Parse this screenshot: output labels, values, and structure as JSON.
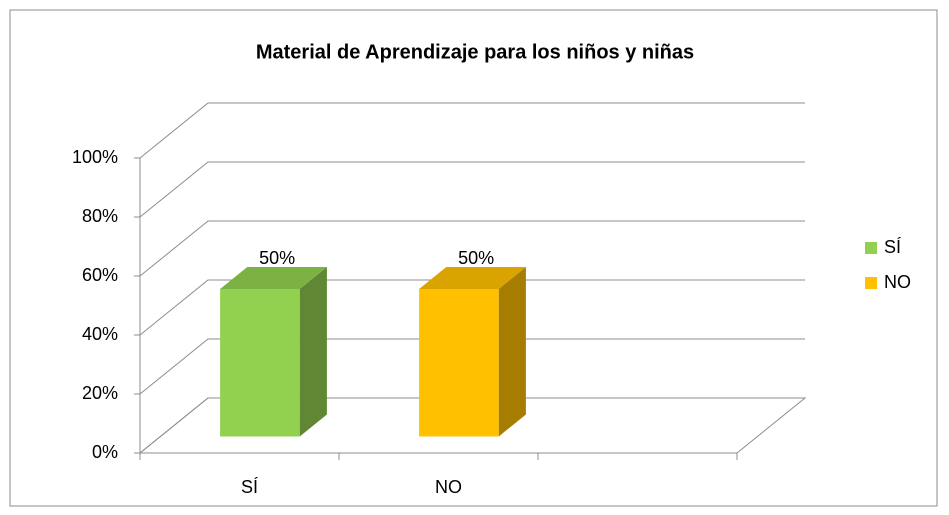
{
  "chart_data": {
    "type": "bar3d",
    "title": "Material de Aprendizaje para los niños y niñas",
    "categories": [
      "SÍ",
      "NO",
      null
    ],
    "series": [
      {
        "name": "SÍ",
        "color": "#92d050",
        "values": [
          50,
          null,
          null
        ],
        "value_labels": [
          "50%",
          null,
          null
        ]
      },
      {
        "name": "NO",
        "color": "#ffc000",
        "values": [
          null,
          50,
          null
        ],
        "value_labels": [
          null,
          "50%",
          null
        ]
      }
    ],
    "ylim": [
      0,
      100
    ],
    "yticks": [
      {
        "value": 0,
        "label": "0%"
      },
      {
        "value": 20,
        "label": "20%"
      },
      {
        "value": 40,
        "label": "40%"
      },
      {
        "value": 60,
        "label": "60%"
      },
      {
        "value": 80,
        "label": "80%"
      },
      {
        "value": 100,
        "label": "100%"
      }
    ],
    "grid": true,
    "legend": "right"
  }
}
